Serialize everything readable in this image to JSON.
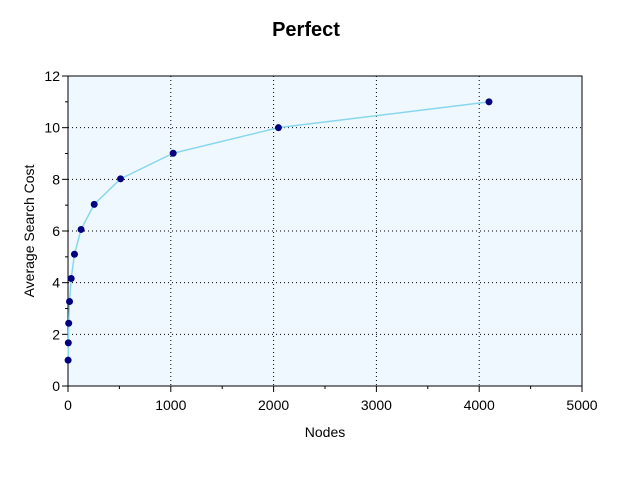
{
  "chart_data": {
    "type": "line",
    "title": "Perfect",
    "xlabel": "Nodes",
    "ylabel": "Average Search Cost",
    "xlim": [
      0,
      5000
    ],
    "ylim": [
      0,
      12
    ],
    "x_ticks": [
      0,
      1000,
      2000,
      3000,
      4000,
      5000
    ],
    "y_ticks": [
      0,
      2,
      4,
      6,
      8,
      10,
      12
    ],
    "grid": true,
    "legend": "none",
    "series": [
      {
        "line_color": "#87d8ee",
        "marker_color": "#000080",
        "points": [
          {
            "x": 1,
            "y": 1.0
          },
          {
            "x": 3,
            "y": 1.67
          },
          {
            "x": 7,
            "y": 2.43
          },
          {
            "x": 15,
            "y": 3.27
          },
          {
            "x": 31,
            "y": 4.16
          },
          {
            "x": 63,
            "y": 5.1
          },
          {
            "x": 127,
            "y": 6.06
          },
          {
            "x": 255,
            "y": 7.03
          },
          {
            "x": 511,
            "y": 8.02
          },
          {
            "x": 1023,
            "y": 9.01
          },
          {
            "x": 2047,
            "y": 10.0
          },
          {
            "x": 4095,
            "y": 11.0
          }
        ]
      }
    ]
  }
}
